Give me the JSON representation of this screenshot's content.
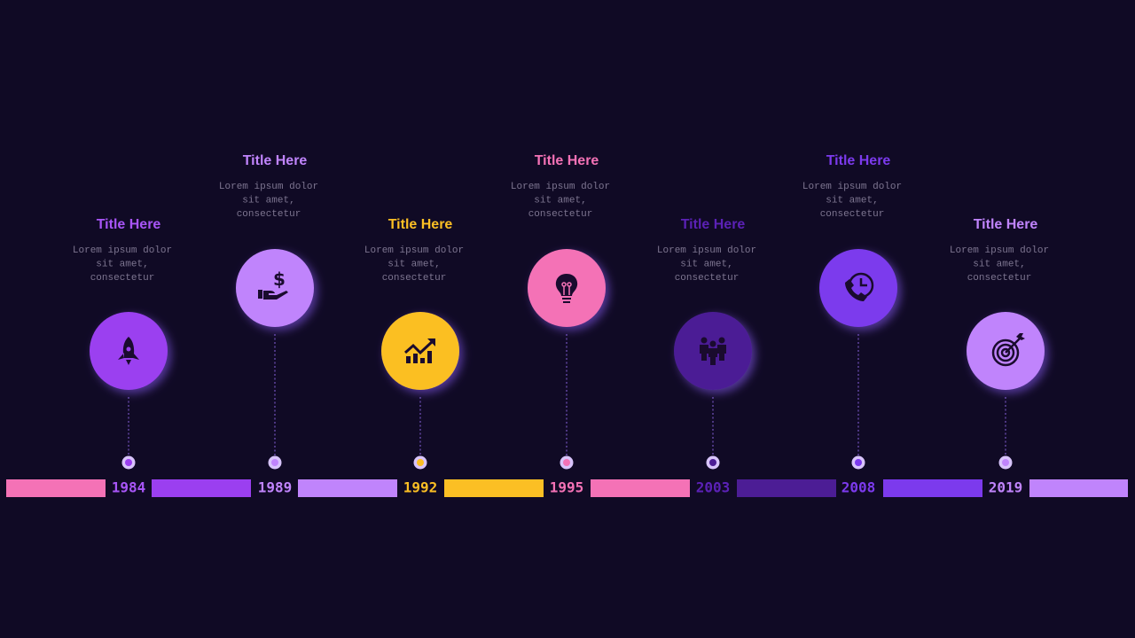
{
  "timeline": {
    "items": [
      {
        "title": "Title Here",
        "text": [
          "Lorem ipsum dolor",
          "sit amet,",
          "consectetur"
        ],
        "year": "1984"
      },
      {
        "title": "Title Here",
        "text": [
          "Lorem ipsum dolor",
          "sit amet,",
          "consectetur"
        ],
        "year": "1989"
      },
      {
        "title": "Title Here",
        "text": [
          "Lorem ipsum dolor",
          "sit amet,",
          "consectetur"
        ],
        "year": "1992"
      },
      {
        "title": "Title Here",
        "text": [
          "Lorem ipsum dolor",
          "sit amet,",
          "consectetur"
        ],
        "year": "1995"
      },
      {
        "title": "Title Here",
        "text": [
          "Lorem ipsum dolor",
          "sit amet,",
          "consectetur"
        ],
        "year": "2003"
      },
      {
        "title": "Title Here",
        "text": [
          "Lorem ipsum dolor",
          "sit amet,",
          "consectetur"
        ],
        "year": "2008"
      },
      {
        "title": "Title Here",
        "text": [
          "Lorem ipsum dolor",
          "sit amet,",
          "consectetur"
        ],
        "year": "2019"
      }
    ]
  }
}
